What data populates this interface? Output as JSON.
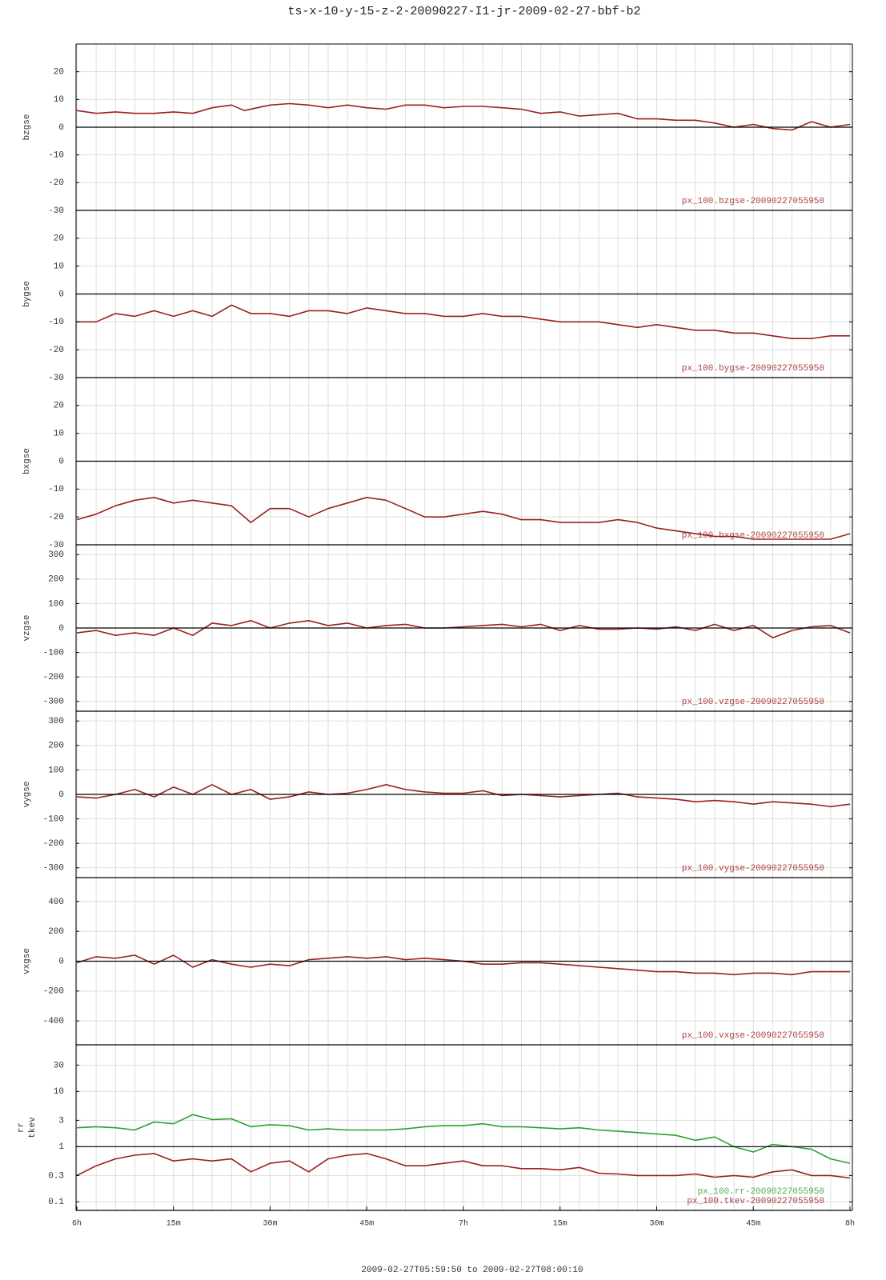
{
  "title": "ts-x-10-y-15-z-2-20090227-I1-jr-2009-02-27-bbf-b2",
  "xlabel": "2009-02-27T05:59:50 to 2009-02-27T08:00:10",
  "chart_data": [
    {
      "type": "line",
      "xlim": [
        0,
        120
      ],
      "ylim": [
        -30,
        30
      ],
      "yticks": [
        -30,
        -20,
        -10,
        0,
        10,
        20
      ],
      "refline": 0,
      "x": [
        0,
        3,
        6,
        9,
        12,
        15,
        18,
        21,
        24,
        26,
        28,
        30,
        33,
        36,
        39,
        42,
        45,
        48,
        51,
        54,
        57,
        60,
        63,
        66,
        69,
        72,
        75,
        78,
        81,
        84,
        87,
        90,
        93,
        96,
        99,
        102,
        105,
        108,
        111,
        114,
        117,
        120
      ],
      "series": [
        {
          "name": "bzgse",
          "color": "#9b2020",
          "label": "px_100.bzgse-20090227055950",
          "values": [
            6,
            5,
            5.5,
            5,
            5,
            5.5,
            5,
            7,
            8,
            6,
            7,
            8,
            8.5,
            8,
            7,
            8,
            7,
            6.5,
            8,
            8,
            7,
            7.5,
            7.5,
            7,
            6.5,
            5,
            5.5,
            4,
            4.5,
            5,
            3,
            3,
            2.5,
            2.5,
            1.5,
            0,
            1,
            -0.5,
            -1,
            2,
            0,
            1
          ]
        }
      ]
    },
    {
      "type": "line",
      "xlim": [
        0,
        120
      ],
      "ylim": [
        -30,
        30
      ],
      "yticks": [
        -30,
        -20,
        -10,
        0,
        10,
        20
      ],
      "refline": 0,
      "x": [
        0,
        3,
        6,
        9,
        12,
        15,
        18,
        21,
        24,
        27,
        30,
        33,
        36,
        39,
        42,
        45,
        48,
        51,
        54,
        57,
        60,
        63,
        66,
        69,
        72,
        75,
        78,
        81,
        84,
        87,
        90,
        93,
        96,
        99,
        102,
        105,
        108,
        111,
        114,
        117,
        120
      ],
      "series": [
        {
          "name": "bygse",
          "color": "#9b2020",
          "label": "px_100.bygse-20090227055950",
          "values": [
            -10,
            -10,
            -7,
            -8,
            -6,
            -8,
            -6,
            -8,
            -4,
            -7,
            -7,
            -8,
            -6,
            -6,
            -7,
            -5,
            -6,
            -7,
            -7,
            -8,
            -8,
            -7,
            -8,
            -8,
            -9,
            -10,
            -10,
            -10,
            -11,
            -12,
            -11,
            -12,
            -13,
            -13,
            -14,
            -14,
            -15,
            -16,
            -16,
            -15,
            -15
          ]
        }
      ]
    },
    {
      "type": "line",
      "xlim": [
        0,
        120
      ],
      "ylim": [
        -30,
        30
      ],
      "yticks": [
        -30,
        -20,
        -10,
        0,
        10,
        20
      ],
      "refline": 0,
      "x": [
        0,
        3,
        6,
        9,
        12,
        15,
        18,
        21,
        24,
        27,
        30,
        33,
        36,
        39,
        42,
        45,
        48,
        51,
        54,
        57,
        60,
        63,
        66,
        69,
        72,
        75,
        78,
        81,
        84,
        87,
        90,
        93,
        96,
        99,
        102,
        105,
        108,
        111,
        114,
        117,
        120
      ],
      "series": [
        {
          "name": "bxgse",
          "color": "#9b2020",
          "label": "px_100.bxgse-20090227055950",
          "values": [
            -21,
            -19,
            -16,
            -14,
            -13,
            -15,
            -14,
            -15,
            -16,
            -22,
            -17,
            -17,
            -20,
            -17,
            -15,
            -13,
            -14,
            -17,
            -20,
            -20,
            -19,
            -18,
            -19,
            -21,
            -21,
            -22,
            -22,
            -22,
            -21,
            -22,
            -24,
            -25,
            -26,
            -27,
            -27,
            -28,
            -28,
            -28,
            -28,
            -28,
            -26
          ]
        }
      ]
    },
    {
      "type": "line",
      "xlim": [
        0,
        120
      ],
      "ylim": [
        -340,
        340
      ],
      "yticks": [
        -300,
        -200,
        -100,
        0,
        100,
        200,
        300
      ],
      "refline": 0,
      "x": [
        0,
        3,
        6,
        9,
        12,
        15,
        18,
        21,
        24,
        27,
        30,
        33,
        36,
        39,
        42,
        45,
        48,
        51,
        54,
        57,
        60,
        63,
        66,
        69,
        72,
        75,
        78,
        81,
        84,
        87,
        90,
        93,
        96,
        99,
        102,
        105,
        108,
        111,
        114,
        117,
        120
      ],
      "series": [
        {
          "name": "vzgse",
          "color": "#9b2020",
          "label": "px_100.vzgse-20090227055950",
          "values": [
            -20,
            -10,
            -30,
            -20,
            -30,
            0,
            -30,
            20,
            10,
            30,
            0,
            20,
            30,
            10,
            20,
            0,
            10,
            15,
            0,
            0,
            5,
            10,
            15,
            5,
            15,
            -10,
            10,
            -5,
            -5,
            0,
            -5,
            5,
            -10,
            15,
            -10,
            10,
            -40,
            -10,
            5,
            10,
            -20
          ]
        }
      ]
    },
    {
      "type": "line",
      "xlim": [
        0,
        120
      ],
      "ylim": [
        -340,
        340
      ],
      "yticks": [
        -300,
        -200,
        -100,
        0,
        100,
        200,
        300
      ],
      "refline": 0,
      "x": [
        0,
        3,
        6,
        9,
        12,
        15,
        18,
        21,
        24,
        27,
        30,
        33,
        36,
        39,
        42,
        45,
        48,
        51,
        54,
        57,
        60,
        63,
        66,
        69,
        72,
        75,
        78,
        81,
        84,
        87,
        90,
        93,
        96,
        99,
        102,
        105,
        108,
        111,
        114,
        117,
        120
      ],
      "series": [
        {
          "name": "vygse",
          "color": "#9b2020",
          "label": "px_100.vygse-20090227055950",
          "values": [
            -10,
            -15,
            0,
            20,
            -10,
            30,
            0,
            40,
            0,
            20,
            -20,
            -10,
            10,
            0,
            5,
            20,
            40,
            20,
            10,
            5,
            5,
            15,
            -5,
            0,
            -5,
            -10,
            -5,
            0,
            5,
            -10,
            -15,
            -20,
            -30,
            -25,
            -30,
            -40,
            -30,
            -35,
            -40,
            -50,
            -40
          ]
        }
      ]
    },
    {
      "type": "line",
      "xlim": [
        0,
        120
      ],
      "ylim": [
        -560,
        560
      ],
      "yticks": [
        -400,
        -200,
        0,
        200,
        400
      ],
      "refline": 0,
      "x": [
        0,
        3,
        6,
        9,
        12,
        15,
        18,
        21,
        24,
        27,
        30,
        33,
        36,
        39,
        42,
        45,
        48,
        51,
        54,
        57,
        60,
        63,
        66,
        69,
        72,
        75,
        78,
        81,
        84,
        87,
        90,
        93,
        96,
        99,
        102,
        105,
        108,
        111,
        114,
        117,
        120
      ],
      "series": [
        {
          "name": "vxgse",
          "color": "#9b2020",
          "label": "px_100.vxgse-20090227055950",
          "values": [
            -10,
            30,
            20,
            40,
            -20,
            40,
            -40,
            10,
            -20,
            -40,
            -20,
            -30,
            10,
            20,
            30,
            20,
            30,
            10,
            20,
            10,
            0,
            -20,
            -20,
            -10,
            -10,
            -20,
            -30,
            -40,
            -50,
            -60,
            -70,
            -70,
            -80,
            -80,
            -90,
            -80,
            -80,
            -90,
            -70,
            -70,
            -70
          ]
        }
      ]
    },
    {
      "type": "line",
      "log": true,
      "xlim": [
        0,
        120
      ],
      "ylim": [
        0.07,
        70
      ],
      "yticks": [
        0.1,
        0.3,
        1,
        3,
        10,
        30
      ],
      "refline": 1,
      "xticks": [
        {
          "value": 0,
          "label": "6h"
        },
        {
          "value": 15,
          "label": "15m"
        },
        {
          "value": 30,
          "label": "30m"
        },
        {
          "value": 45,
          "label": "45m"
        },
        {
          "value": 60,
          "label": "7h"
        },
        {
          "value": 75,
          "label": "15m"
        },
        {
          "value": 90,
          "label": "30m"
        },
        {
          "value": 105,
          "label": "45m"
        },
        {
          "value": 120,
          "label": "8h"
        }
      ],
      "xgrid": [
        0,
        3,
        6,
        9,
        12,
        15,
        18,
        21,
        24,
        27,
        30,
        33,
        36,
        39,
        42,
        45,
        48,
        51,
        54,
        57,
        60,
        63,
        66,
        69,
        72,
        75,
        78,
        81,
        84,
        87,
        90,
        93,
        96,
        99,
        102,
        105,
        108,
        111,
        114,
        117,
        120
      ],
      "x": [
        0,
        3,
        6,
        9,
        12,
        15,
        18,
        21,
        24,
        27,
        30,
        33,
        36,
        39,
        42,
        45,
        48,
        51,
        54,
        57,
        60,
        63,
        66,
        69,
        72,
        75,
        78,
        81,
        84,
        87,
        90,
        93,
        96,
        99,
        102,
        105,
        108,
        111,
        114,
        117,
        120
      ],
      "series": [
        {
          "name": "rr",
          "color": "#2ca02c",
          "label": "px_100.rr-20090227055950",
          "values": [
            2.2,
            2.3,
            2.2,
            2,
            2.8,
            2.6,
            3.8,
            3.1,
            3.2,
            2.3,
            2.5,
            2.4,
            2,
            2.1,
            2,
            2,
            2,
            2.1,
            2.3,
            2.4,
            2.4,
            2.6,
            2.3,
            2.3,
            2.2,
            2.1,
            2.2,
            2,
            1.9,
            1.8,
            1.7,
            1.6,
            1.3,
            1.5,
            1,
            0.8,
            1.1,
            1,
            0.9,
            0.6,
            0.5
          ]
        },
        {
          "name": "tkev",
          "color": "#9b2020",
          "label": "px_100.tkev-20090227055950",
          "values": [
            0.3,
            0.45,
            0.6,
            0.7,
            0.75,
            0.55,
            0.6,
            0.55,
            0.6,
            0.35,
            0.5,
            0.55,
            0.35,
            0.6,
            0.7,
            0.75,
            0.6,
            0.45,
            0.45,
            0.5,
            0.55,
            0.45,
            0.45,
            0.4,
            0.4,
            0.38,
            0.42,
            0.33,
            0.32,
            0.3,
            0.3,
            0.3,
            0.32,
            0.28,
            0.3,
            0.28,
            0.35,
            0.38,
            0.3,
            0.3,
            0.27
          ]
        }
      ]
    }
  ]
}
